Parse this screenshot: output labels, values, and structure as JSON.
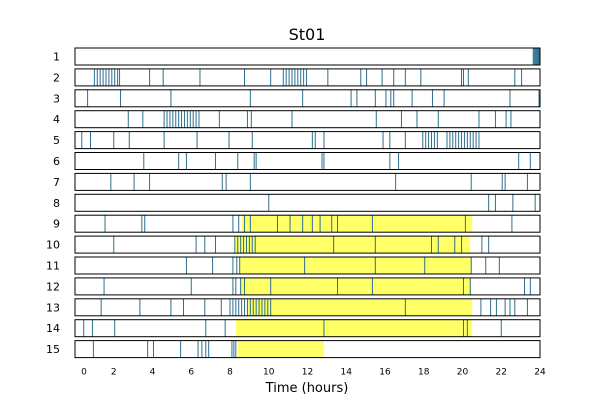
{
  "chart_data": {
    "type": "event-raster",
    "title": "St01",
    "xlabel": "Time (hours)",
    "xlim": [
      0,
      24
    ],
    "xticks": [
      0,
      2,
      4,
      6,
      8,
      10,
      12,
      14,
      16,
      18,
      20,
      22,
      24
    ],
    "colors": {
      "event": "#2c6f8f",
      "highlight": "#ffff66",
      "frame": "#000000"
    },
    "rows": [
      {
        "label": "1",
        "highlight": [],
        "events": [
          23.65,
          23.7,
          23.75,
          23.8,
          23.85,
          23.9,
          23.95
        ]
      },
      {
        "label": "2",
        "highlight": [],
        "events": [
          1.0,
          1.15,
          1.3,
          1.45,
          1.6,
          1.75,
          1.9,
          2.05,
          2.2,
          2.3,
          3.85,
          4.55,
          6.45,
          8.75,
          10.1,
          10.75,
          10.9,
          11.05,
          11.2,
          11.35,
          11.5,
          11.65,
          11.8,
          11.95,
          13.05,
          14.75,
          15.05,
          15.85,
          16.45,
          17.05,
          17.85,
          19.95,
          20.05,
          20.3,
          22.7,
          23.05
        ]
      },
      {
        "label": "3",
        "highlight": [],
        "events": [
          0.65,
          2.35,
          4.95,
          9.05,
          11.75,
          14.25,
          14.55,
          15.5,
          16.05,
          16.3,
          16.45,
          17.4,
          18.45,
          19.05,
          22.45,
          23.95
        ]
      },
      {
        "label": "4",
        "highlight": [],
        "events": [
          2.75,
          3.5,
          4.6,
          4.75,
          4.9,
          5.05,
          5.2,
          5.35,
          5.5,
          5.65,
          5.8,
          5.95,
          6.1,
          6.25,
          6.4,
          7.45,
          8.9,
          9.1,
          11.2,
          15.55,
          16.85,
          17.65,
          18.75,
          20.85,
          21.7,
          22.25,
          22.5
        ]
      },
      {
        "label": "5",
        "highlight": [],
        "events": [
          0.35,
          0.8,
          2.0,
          2.8,
          4.6,
          6.3,
          7.95,
          9.15,
          12.25,
          12.4,
          12.85,
          15.9,
          16.25,
          17.05,
          17.95,
          18.1,
          18.25,
          18.4,
          18.55,
          18.7,
          19.2,
          19.35,
          19.5,
          19.65,
          19.8,
          19.95,
          20.1,
          20.25,
          20.4,
          20.55,
          20.7,
          20.85
        ]
      },
      {
        "label": "6",
        "highlight": [],
        "events": [
          3.55,
          5.35,
          5.75,
          7.25,
          8.4,
          9.25,
          9.35,
          12.75,
          12.85,
          16.25,
          16.7,
          22.9,
          23.5
        ]
      },
      {
        "label": "7",
        "highlight": [],
        "events": [
          1.85,
          3.05,
          3.85,
          7.6,
          7.8,
          9.05,
          16.55,
          20.45,
          22.05,
          22.2,
          23.35
        ]
      },
      {
        "label": "8",
        "highlight": [],
        "events": [
          10.0,
          21.35,
          21.7,
          22.6,
          23.75
        ]
      },
      {
        "label": "9",
        "highlight": [
          [
            8.6,
            20.5
          ]
        ],
        "events": [
          1.55,
          3.45,
          3.6,
          8.15,
          8.45,
          8.75,
          9.05,
          10.45,
          11.1,
          11.75,
          12.25,
          12.65,
          13.25,
          13.55,
          15.35,
          20.15,
          22.55
        ]
      },
      {
        "label": "10",
        "highlight": [
          [
            8.3,
            20.4
          ]
        ],
        "events": [
          2.0,
          6.25,
          6.7,
          7.25,
          8.25,
          8.4,
          8.55,
          8.7,
          8.85,
          9.0,
          9.15,
          9.3,
          13.35,
          15.5,
          18.4,
          18.75,
          19.6,
          19.95,
          21.0,
          21.35
        ]
      },
      {
        "label": "11",
        "highlight": [
          [
            8.5,
            20.45
          ]
        ],
        "events": [
          5.75,
          7.1,
          8.15,
          8.35,
          8.5,
          11.85,
          15.5,
          18.05,
          20.45,
          21.2,
          21.9
        ]
      },
      {
        "label": "12",
        "highlight": [
          [
            8.5,
            20.45
          ]
        ],
        "events": [
          1.5,
          6.0,
          8.15,
          8.3,
          8.55,
          8.75,
          10.1,
          13.55,
          15.35,
          20.05,
          20.4,
          23.2,
          23.5
        ]
      },
      {
        "label": "13",
        "highlight": [
          [
            8.9,
            20.5
          ]
        ],
        "events": [
          1.35,
          3.35,
          4.95,
          5.6,
          6.7,
          7.55,
          8.0,
          8.15,
          8.3,
          8.45,
          8.6,
          8.75,
          8.9,
          9.05,
          9.2,
          9.35,
          9.5,
          9.65,
          9.8,
          9.95,
          10.1,
          17.05,
          20.95,
          21.45,
          21.75,
          22.2,
          22.45,
          22.7,
          23.35
        ]
      },
      {
        "label": "14",
        "highlight": [
          [
            8.3,
            20.5
          ]
        ],
        "events": [
          0.45,
          0.9,
          2.05,
          6.75,
          7.75,
          12.85,
          20.05,
          20.25,
          22.0
        ]
      },
      {
        "label": "15",
        "highlight": [
          [
            8.4,
            12.85
          ]
        ],
        "events": [
          0.95,
          3.75,
          4.05,
          5.45,
          6.35,
          6.55,
          6.75,
          6.9,
          8.1,
          8.2,
          8.3
        ]
      }
    ]
  }
}
